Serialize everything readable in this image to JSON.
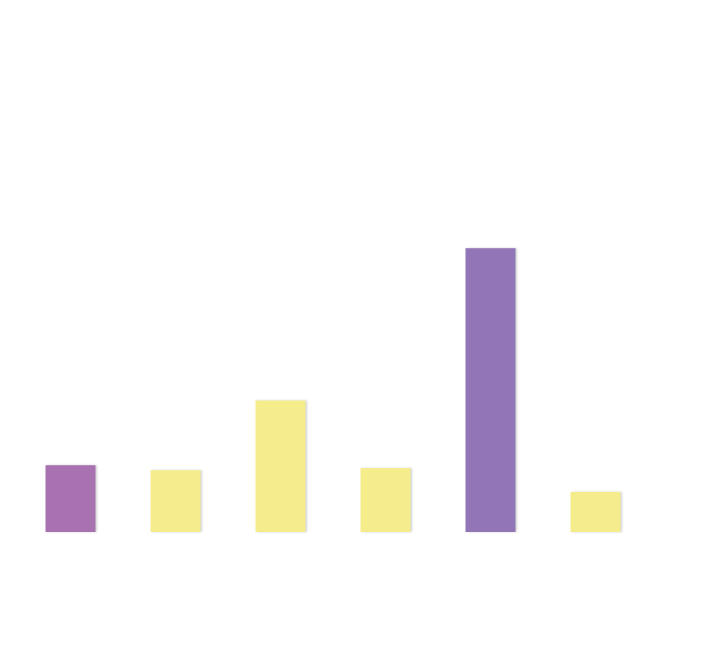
{
  "chart_data": {
    "type": "bar",
    "categories": [
      "",
      "",
      "",
      "",
      "",
      ""
    ],
    "values": [
      16,
      14.8,
      31.5,
      15.3,
      68,
      9.6
    ],
    "colors": [
      "#a872b1",
      "#f5ed8c",
      "#f5ed8c",
      "#f5ed8c",
      "#9275b6",
      "#f5ed8c"
    ],
    "ylim": [
      0,
      127
    ],
    "grid": false,
    "legend": "none",
    "title": "",
    "xlabel": "",
    "ylabel": ""
  }
}
